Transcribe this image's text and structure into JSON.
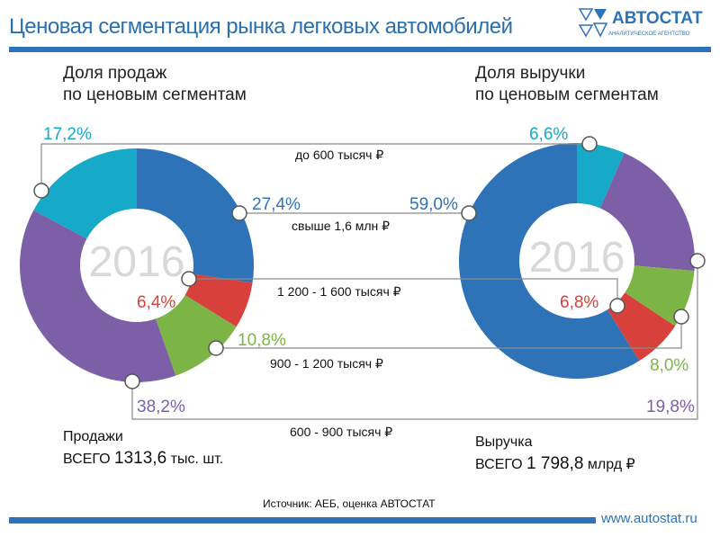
{
  "title": "Ценовая сегментация рынка легковых автомобилей",
  "logo": {
    "name": "АВТОСТАТ",
    "subtitle": "АНАЛИТИЧЕСКОЕ АГЕНТСТВО"
  },
  "source": "Источник: АЕБ, оценка АВТОСТАТ",
  "url": "www.autostat.ru",
  "colors": {
    "blue": "#2e73b8",
    "cyan": "#17a9c8",
    "purple": "#7d5fa8",
    "green": "#7db446",
    "red": "#d8413b",
    "line": "#8a8a8a"
  },
  "segments": [
    "до 600 тысяч ₽",
    "свыше 1,6 млн ₽",
    "1 200 - 1 600 тысяч ₽",
    "900 - 1 200 тысяч ₽",
    "600 - 900 тысяч ₽"
  ],
  "chart_data": [
    {
      "type": "pie",
      "subtitle_line1": "Доля продаж",
      "subtitle_line2": "по ценовым сегментам",
      "center_label": "2016",
      "categories": [
        "свыше 1,6 млн ₽",
        "1 200 - 1 600 тысяч ₽",
        "900 - 1 200 тысяч ₽",
        "600 - 900 тысяч ₽",
        "до 600 тысяч ₽"
      ],
      "values": [
        27.4,
        6.4,
        10.8,
        38.2,
        17.2
      ],
      "labels": [
        "27,4%",
        "6,4%",
        "10,8%",
        "38,2%",
        "17,2%"
      ],
      "colors": [
        "#2e73b8",
        "#d8413b",
        "#7db446",
        "#7d5fa8",
        "#17a9c8"
      ],
      "total_label": "Продажи",
      "total_prefix": "ВСЕГО",
      "total_value": "1313,6",
      "total_unit": "тыс. шт."
    },
    {
      "type": "pie",
      "subtitle_line1": "Доля выручки",
      "subtitle_line2": "по ценовым сегментам",
      "center_label": "2016",
      "categories": [
        "до 600 тысяч ₽",
        "600 - 900 тысяч ₽",
        "900 - 1 200 тысяч ₽",
        "1 200 - 1 600 тысяч ₽",
        "свыше 1,6 млн ₽"
      ],
      "values": [
        6.6,
        19.8,
        8.0,
        6.8,
        59.0
      ],
      "labels": [
        "6,6%",
        "19,8%",
        "8,0%",
        "6,8%",
        "59,0%"
      ],
      "colors": [
        "#17a9c8",
        "#7d5fa8",
        "#7db446",
        "#d8413b",
        "#2e73b8"
      ],
      "total_label": "Выручка",
      "total_prefix": "ВСЕГО",
      "total_value": "1 798,8",
      "total_unit": "млрд ₽"
    }
  ]
}
